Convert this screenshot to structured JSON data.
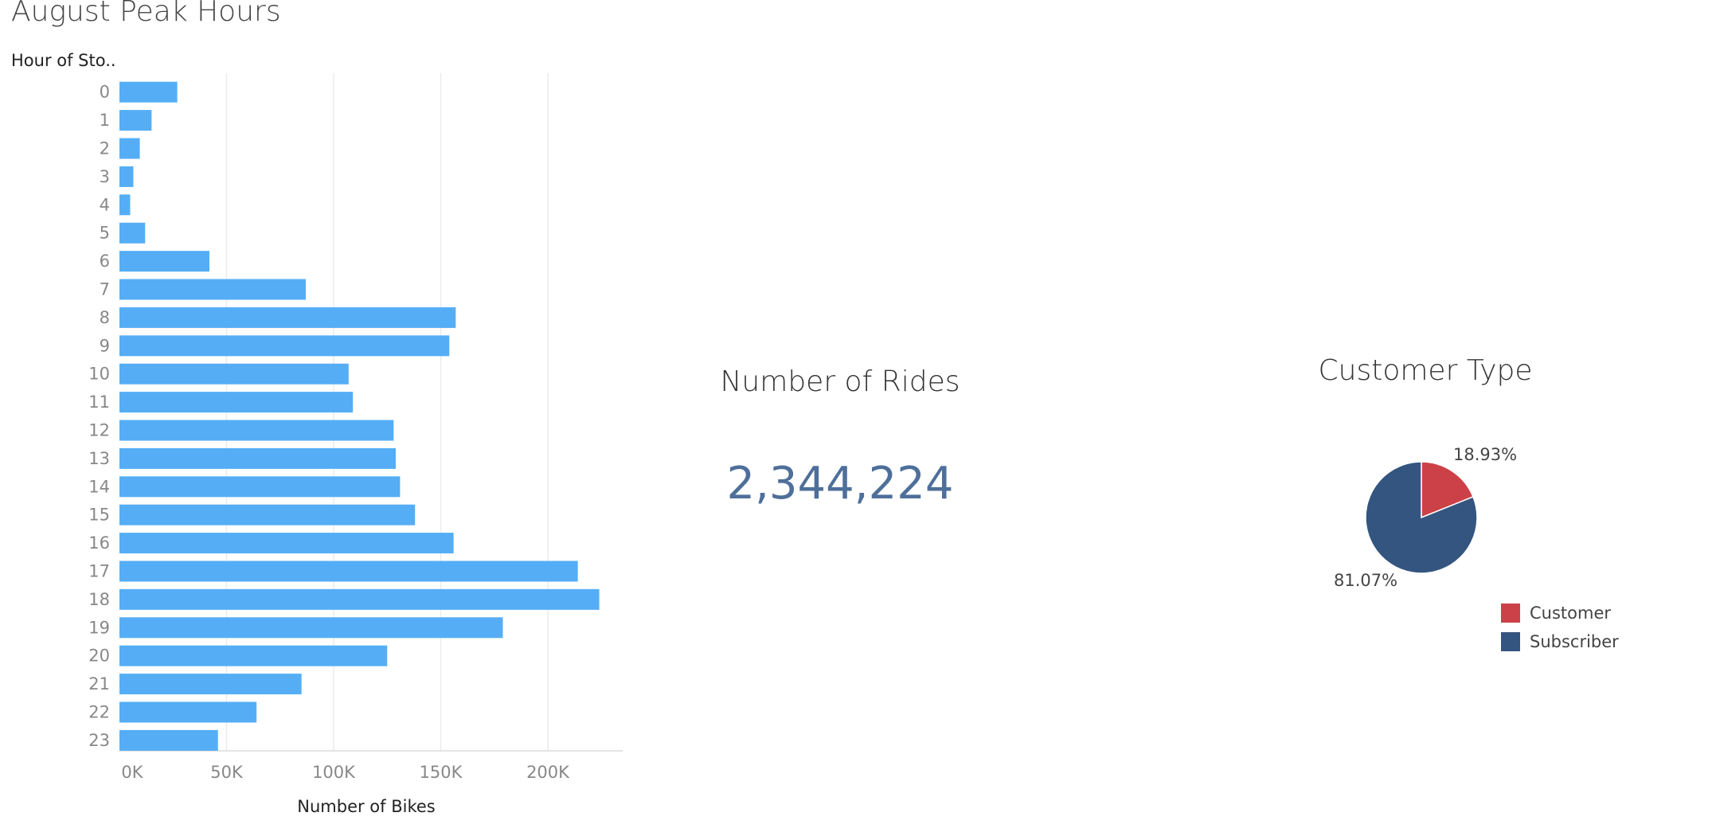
{
  "dashboard": {
    "title": "August Peak Hours"
  },
  "kpi": {
    "label": "Number of Rides",
    "value": "2,344,224"
  },
  "colors": {
    "bar": "#55aef5",
    "grid": "#ececec",
    "axis_text": "#888888",
    "kpi_value": "#4e6f9a",
    "customer": "#cc4148",
    "subscriber": "#34557f"
  },
  "chart_data": [
    {
      "type": "bar",
      "orientation": "horizontal",
      "title": "",
      "ylabel": "Hour of Sto..",
      "xlabel": "Number of Bikes",
      "categories": [
        "0",
        "1",
        "2",
        "3",
        "4",
        "5",
        "6",
        "7",
        "8",
        "9",
        "10",
        "11",
        "12",
        "13",
        "14",
        "15",
        "16",
        "17",
        "18",
        "19",
        "20",
        "21",
        "22",
        "23"
      ],
      "values": [
        27000,
        15000,
        9500,
        6500,
        5000,
        12000,
        42000,
        87000,
        157000,
        154000,
        107000,
        109000,
        128000,
        129000,
        131000,
        138000,
        156000,
        214000,
        224000,
        179000,
        125000,
        85000,
        64000,
        46000
      ],
      "xlim": [
        0,
        235000
      ],
      "xticks": [
        0,
        50000,
        100000,
        150000,
        200000
      ],
      "xtick_labels": [
        "0K",
        "50K",
        "100K",
        "150K",
        "200K"
      ],
      "grid": true
    },
    {
      "type": "pie",
      "title": "Customer Type",
      "slices": [
        {
          "name": "Customer",
          "value": 18.93,
          "label": "18.93%"
        },
        {
          "name": "Subscriber",
          "value": 81.07,
          "label": "81.07%"
        }
      ],
      "legend": "bottom-right"
    }
  ]
}
